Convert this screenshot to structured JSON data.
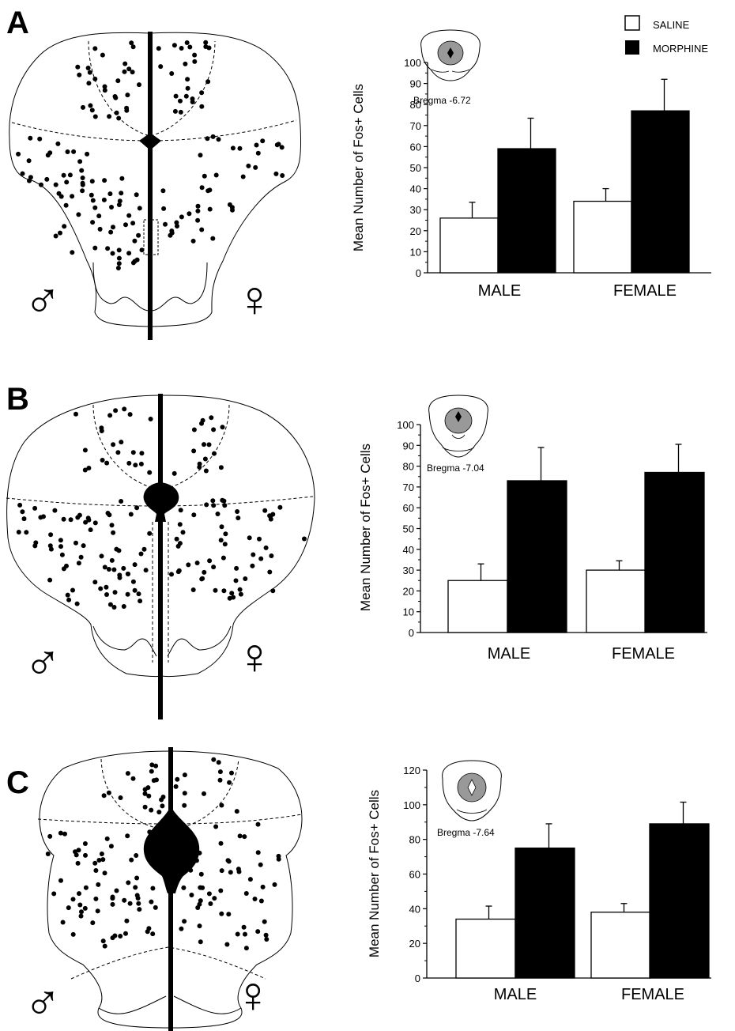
{
  "figure": {
    "legend": {
      "items": [
        {
          "label": "SALINE",
          "color": "#ffffff"
        },
        {
          "label": "MORPHINE",
          "color": "#000000"
        }
      ],
      "placement": "top-right of panel A"
    },
    "sex_symbols": {
      "male": "♂",
      "female": "♀"
    },
    "colors": {
      "saline_fill": "#ffffff",
      "morphine_fill": "#000000",
      "stroke": "#000000"
    }
  },
  "chart_data": [
    {
      "panel": "A",
      "type": "bar",
      "ylabel": "Mean Number of Fos+ Cells",
      "inset_label": "Bregma -6.72",
      "categories": [
        "MALE",
        "FEMALE"
      ],
      "ylim": [
        0,
        100
      ],
      "yticks": [
        0,
        10,
        20,
        30,
        40,
        50,
        60,
        70,
        80,
        90,
        100
      ],
      "series": [
        {
          "name": "SALINE",
          "values": [
            26,
            34
          ],
          "errors": [
            7.5,
            6
          ]
        },
        {
          "name": "MORPHINE",
          "values": [
            59,
            77
          ],
          "errors": [
            14.5,
            15
          ]
        }
      ],
      "grid": false
    },
    {
      "panel": "B",
      "type": "bar",
      "ylabel": "Mean Number of Fos+ Cells",
      "inset_label": "Bregma -7.04",
      "categories": [
        "MALE",
        "FEMALE"
      ],
      "ylim": [
        0,
        100
      ],
      "yticks": [
        0,
        10,
        20,
        30,
        40,
        50,
        60,
        70,
        80,
        90,
        100
      ],
      "series": [
        {
          "name": "SALINE",
          "values": [
            25,
            30
          ],
          "errors": [
            8,
            4.5
          ]
        },
        {
          "name": "MORPHINE",
          "values": [
            73,
            77
          ],
          "errors": [
            16,
            13.5
          ]
        }
      ],
      "grid": false
    },
    {
      "panel": "C",
      "type": "bar",
      "ylabel": "Mean Number of Fos+ Cells",
      "inset_label": "Bregma -7.64",
      "categories": [
        "MALE",
        "FEMALE"
      ],
      "ylim": [
        0,
        120
      ],
      "yticks": [
        0,
        20,
        40,
        60,
        80,
        100,
        120
      ],
      "series": [
        {
          "name": "SALINE",
          "values": [
            34,
            38
          ],
          "errors": [
            7.5,
            5
          ]
        },
        {
          "name": "MORPHINE",
          "values": [
            75,
            89
          ],
          "errors": [
            14,
            12.5
          ]
        }
      ],
      "grid": false
    }
  ]
}
